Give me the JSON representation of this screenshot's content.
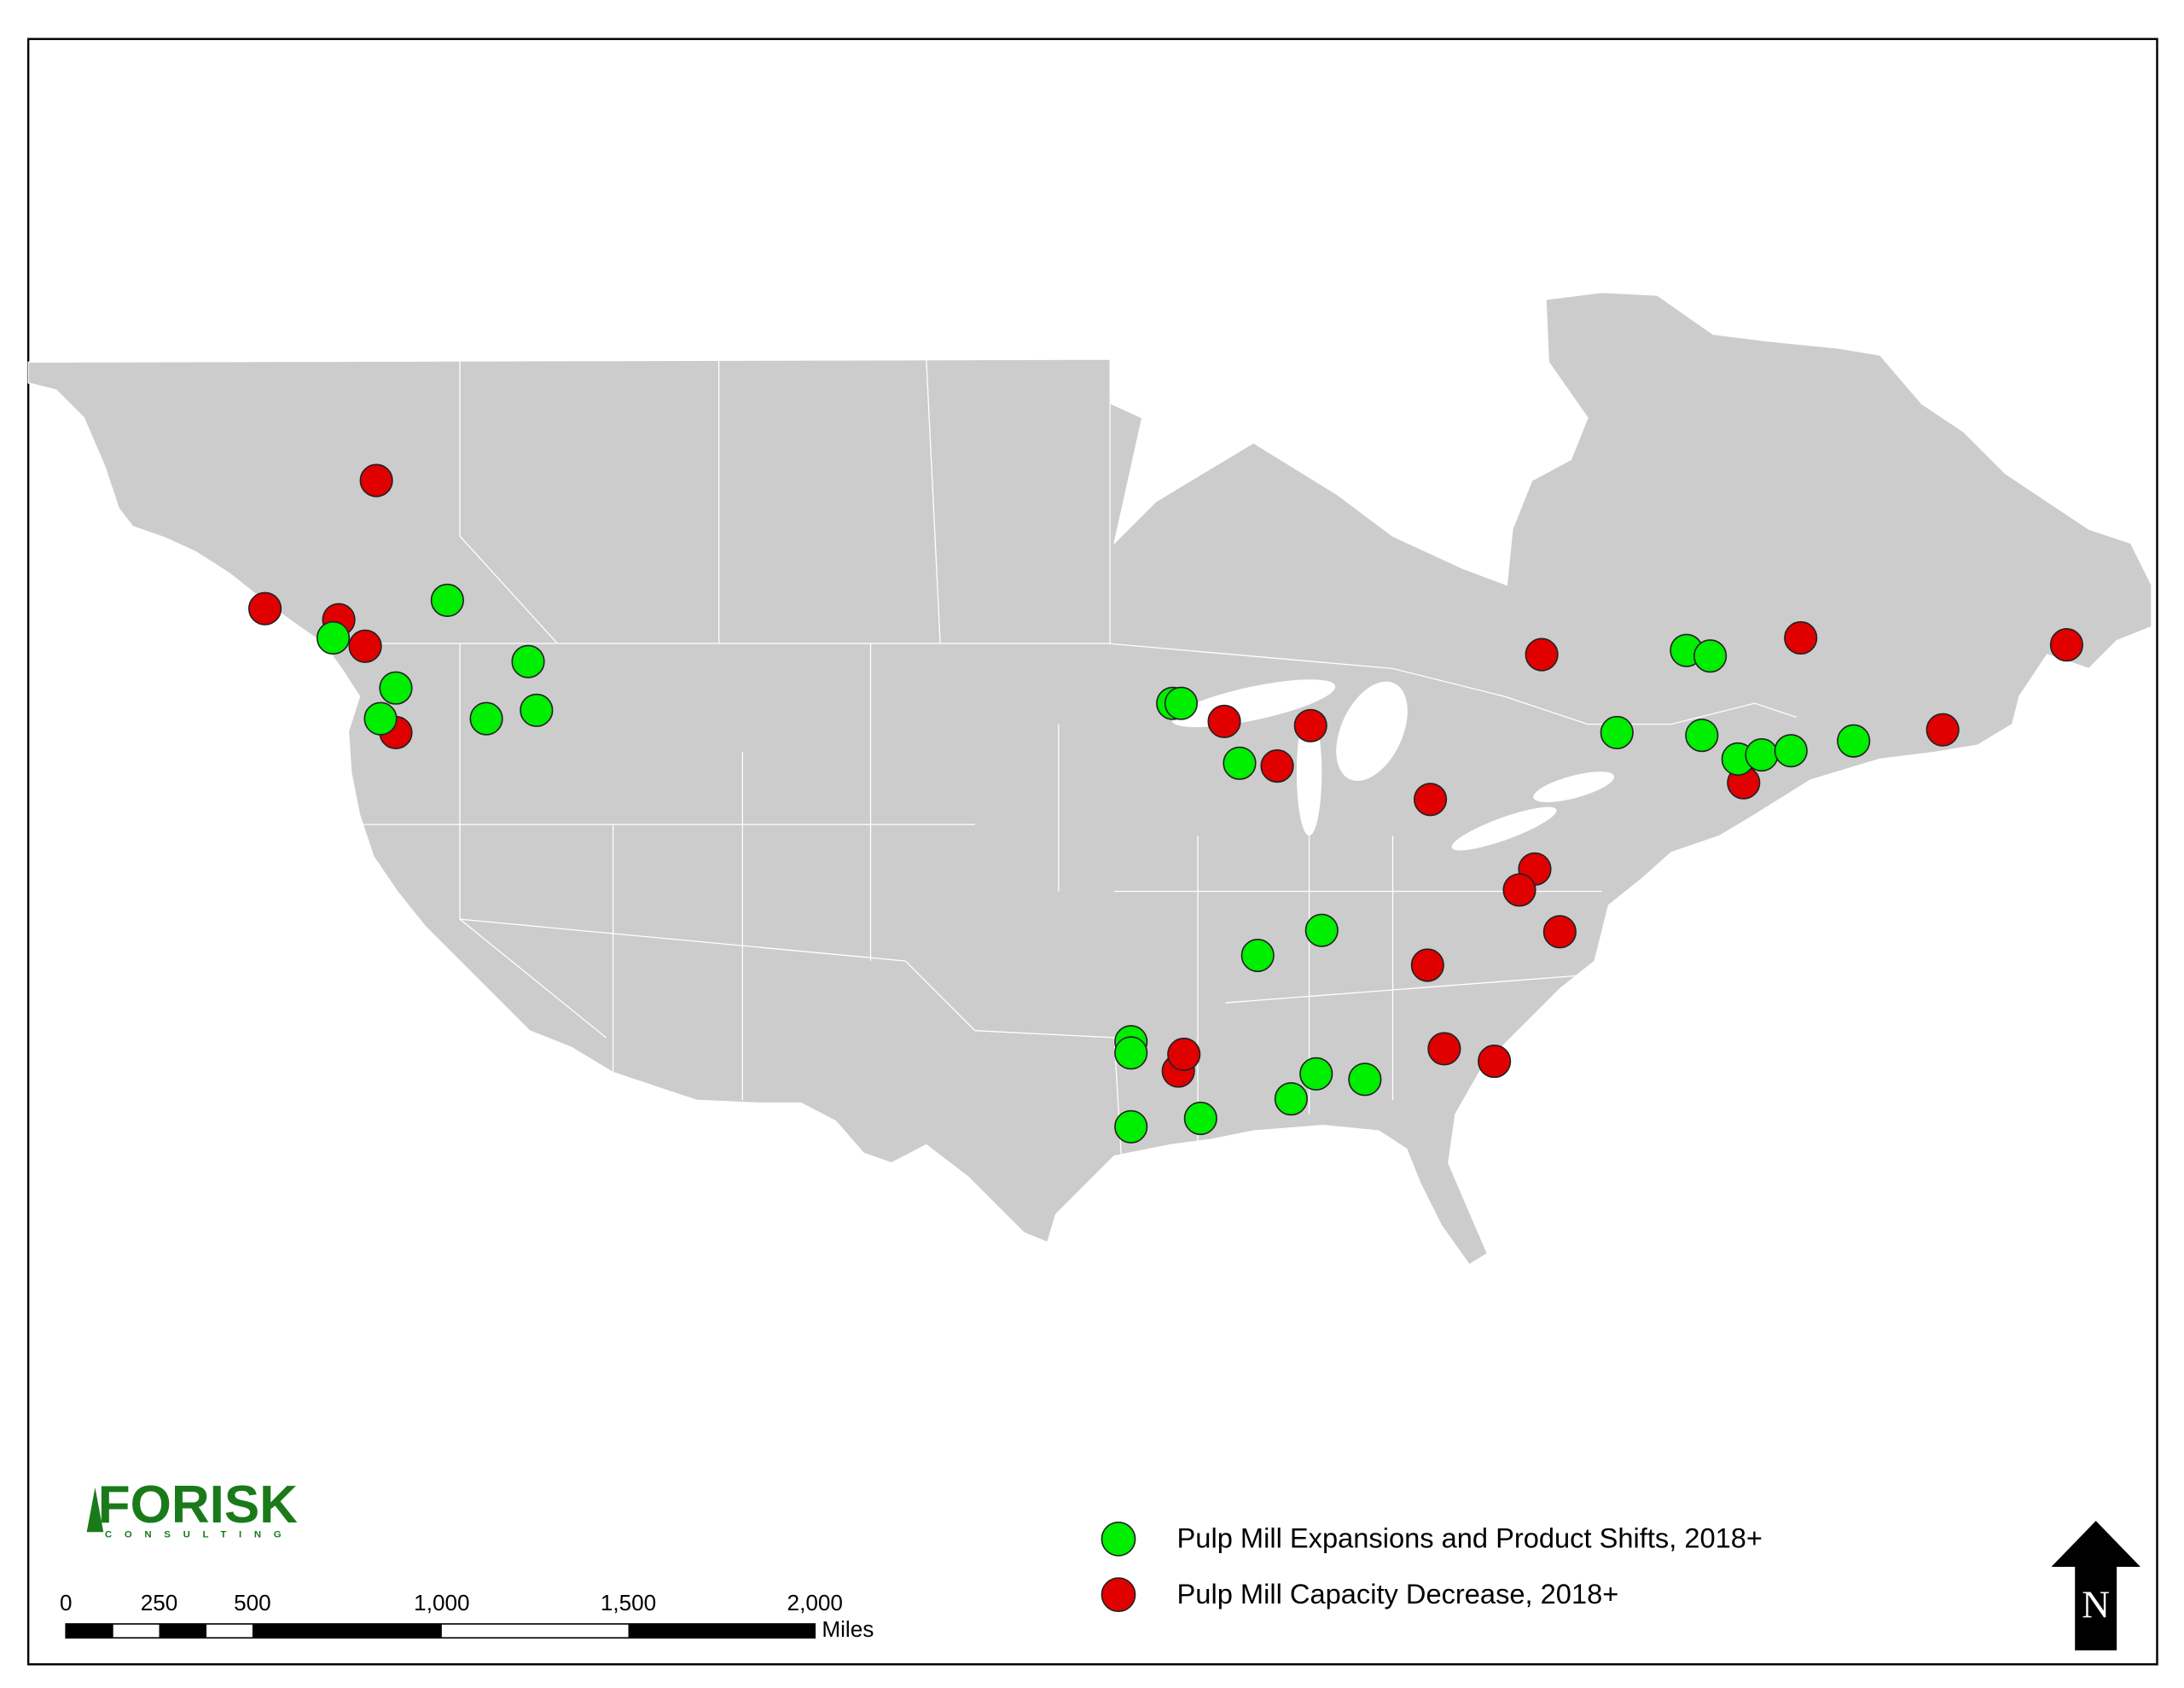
{
  "logo": {
    "name": "FORISK",
    "subtitle": "CONSULTING"
  },
  "legend": {
    "items": [
      "Pulp Mill Expansions and Product Shifts, 2018+",
      "Pulp Mill Capacity Decrease, 2018+"
    ]
  },
  "scale_bar": {
    "labels": [
      "0",
      "250",
      "500",
      "1,000",
      "1,500",
      "2,000"
    ],
    "unit": "Miles"
  },
  "north_arrow": "N"
}
